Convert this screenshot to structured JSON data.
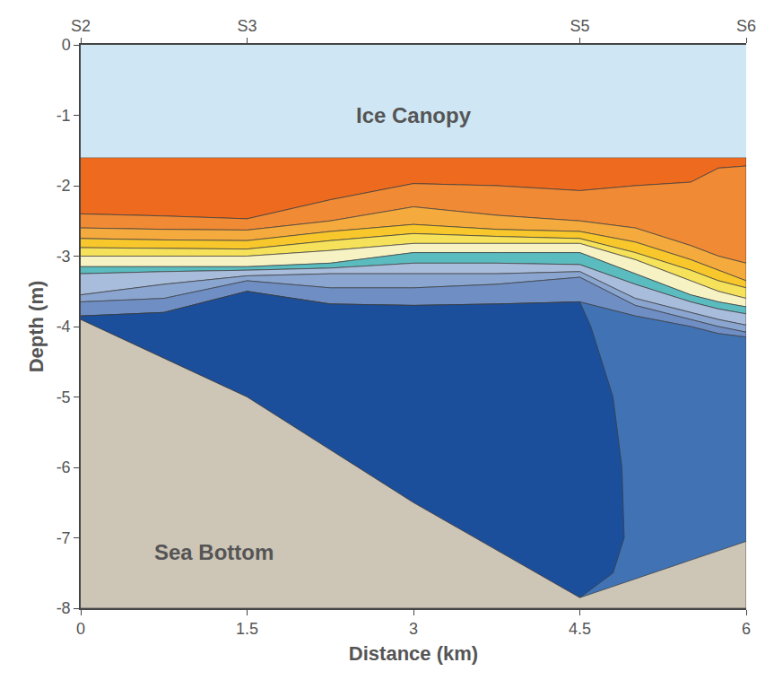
{
  "chart_data": {
    "type": "section",
    "xlabel": "Distance (km)",
    "ylabel": "Depth (m)",
    "xlim": [
      0,
      6
    ],
    "xticks": [
      0,
      1.5,
      3,
      4.5,
      6
    ],
    "ylim": [
      -8,
      0
    ],
    "yticks": [
      -8,
      -7,
      -6,
      -5,
      -4,
      -3,
      -2,
      -1,
      0
    ],
    "grid": false,
    "stations": {
      "x": [
        0,
        1.5,
        4.5,
        6
      ],
      "labels": [
        "S2",
        "S3",
        "S5",
        "S6"
      ]
    },
    "ice": {
      "label": "Ice Canopy",
      "label_x": 3,
      "label_y": -1,
      "bottom": -1.6,
      "color": "#cfe7f4"
    },
    "sea_bottom": {
      "label": "Sea Bottom",
      "label_x": 1.2,
      "label_y": -7.2,
      "color": "#cdc5b6",
      "x": [
        0,
        1.5,
        3,
        4.5,
        6
      ],
      "y": [
        -3.9,
        -5.0,
        -6.5,
        -7.85,
        -7.05
      ]
    },
    "x": [
      0,
      0.75,
      1.5,
      2.25,
      3,
      3.75,
      4.5,
      5,
      5.5,
      5.75,
      6
    ],
    "boundaries": [
      [
        -2.4,
        -2.43,
        -2.47,
        -2.2,
        -1.97,
        -2.0,
        -2.07,
        -2.0,
        -1.95,
        -1.75,
        -1.72
      ],
      [
        -2.6,
        -2.62,
        -2.63,
        -2.5,
        -2.3,
        -2.42,
        -2.5,
        -2.6,
        -2.85,
        -3.0,
        -3.1
      ],
      [
        -2.75,
        -2.77,
        -2.78,
        -2.65,
        -2.55,
        -2.62,
        -2.65,
        -2.8,
        -3.05,
        -3.2,
        -3.35
      ],
      [
        -2.88,
        -2.89,
        -2.9,
        -2.78,
        -2.68,
        -2.72,
        -2.75,
        -2.95,
        -3.2,
        -3.35,
        -3.45
      ],
      [
        -3.0,
        -3.0,
        -3.0,
        -2.92,
        -2.82,
        -2.82,
        -2.82,
        -3.05,
        -3.35,
        -3.5,
        -3.6
      ],
      [
        -3.15,
        -3.15,
        -3.15,
        -3.1,
        -2.95,
        -2.95,
        -2.95,
        -3.25,
        -3.55,
        -3.65,
        -3.72
      ],
      [
        -3.25,
        -3.22,
        -3.2,
        -3.17,
        -3.1,
        -3.1,
        -3.12,
        -3.4,
        -3.65,
        -3.75,
        -3.82
      ],
      [
        -3.55,
        -3.4,
        -3.28,
        -3.25,
        -3.25,
        -3.25,
        -3.22,
        -3.6,
        -3.8,
        -3.9,
        -3.98
      ],
      [
        -3.65,
        -3.6,
        -3.35,
        -3.45,
        -3.45,
        -3.4,
        -3.3,
        -3.7,
        -3.9,
        -4.0,
        -4.08
      ],
      [
        -3.85,
        -3.8,
        -3.5,
        -3.68,
        -3.7,
        -3.68,
        -3.65,
        -3.85,
        -4.0,
        -4.1,
        -4.15
      ]
    ],
    "band_colors": [
      "#ed6a1f",
      "#f08a35",
      "#f5aa3e",
      "#f7c72c",
      "#f6e25a",
      "#f7f2c4",
      "#5bbcc0",
      "#a8bcdb",
      "#8aa5cf",
      "#6e8ec4"
    ],
    "deep_color": "#4173b4",
    "core": {
      "color": "#1c4f9b",
      "x": [
        0,
        0.75,
        1.5,
        2.25,
        3,
        3.75,
        4.5,
        4.6,
        4.7,
        4.8,
        4.88,
        4.9,
        4.8,
        4.5,
        3,
        1.5,
        0
      ],
      "y": [
        -3.85,
        -3.8,
        -3.5,
        -3.68,
        -3.7,
        -3.68,
        -3.65,
        -4.0,
        -4.5,
        -5.0,
        -6.0,
        -7.0,
        -7.5,
        -7.85,
        -6.5,
        -5.0,
        -3.9
      ]
    }
  }
}
